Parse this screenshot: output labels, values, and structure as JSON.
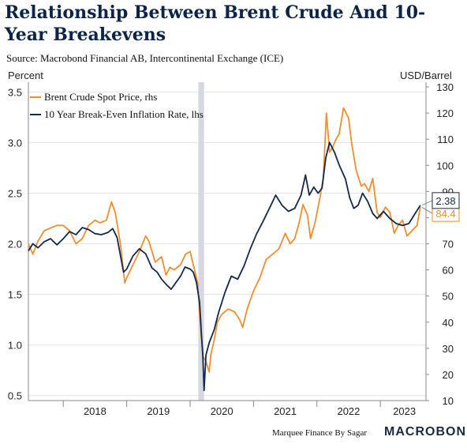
{
  "title": "Relationship Between Brent Crude And 10-Year Breakevens",
  "source": "Source: Macrobond Financial AB, Intercontinental Exchange (ICE)",
  "footer": {
    "credit": "Marquee Finance By Sagar",
    "brand": "MACROBOND"
  },
  "chart_data": {
    "type": "line",
    "ylabel_left": "Percent",
    "ylabel_right": "USD/Barrel",
    "xlim": [
      2017.45,
      2023.72
    ],
    "ylim_left": [
      0.45,
      3.55
    ],
    "ylim_right": [
      10,
      130
    ],
    "yticks_left": [
      "0.5",
      "1.0",
      "1.5",
      "2.0",
      "2.5",
      "3.0",
      "3.5"
    ],
    "yticks_right": [
      "10",
      "20",
      "30",
      "40",
      "50",
      "60",
      "70",
      "80",
      "90",
      "100",
      "110",
      "120",
      "130"
    ],
    "xticks": [
      "2018",
      "2019",
      "2020",
      "2021",
      "2022",
      "2023"
    ],
    "grid": true,
    "legend_position": "top-left",
    "shaded_period": [
      2020.13,
      2020.22
    ],
    "series": [
      {
        "name": "Brent Crude Spot Price, rhs",
        "axis": "right",
        "color": "#f28e2b",
        "last_value_label": "84.4",
        "points": [
          [
            2017.45,
            70
          ],
          [
            2017.52,
            66
          ],
          [
            2017.6,
            71
          ],
          [
            2017.7,
            75
          ],
          [
            2017.8,
            76
          ],
          [
            2017.9,
            77
          ],
          [
            2018.0,
            77
          ],
          [
            2018.1,
            75
          ],
          [
            2018.2,
            70
          ],
          [
            2018.3,
            72
          ],
          [
            2018.4,
            77
          ],
          [
            2018.5,
            79
          ],
          [
            2018.58,
            78
          ],
          [
            2018.68,
            79
          ],
          [
            2018.76,
            86
          ],
          [
            2018.82,
            82
          ],
          [
            2018.9,
            70
          ],
          [
            2018.97,
            55
          ],
          [
            2019.0,
            57
          ],
          [
            2019.1,
            62
          ],
          [
            2019.2,
            67
          ],
          [
            2019.3,
            73
          ],
          [
            2019.35,
            71
          ],
          [
            2019.45,
            63
          ],
          [
            2019.55,
            65
          ],
          [
            2019.62,
            58
          ],
          [
            2019.68,
            61
          ],
          [
            2019.75,
            60
          ],
          [
            2019.85,
            62
          ],
          [
            2019.93,
            66
          ],
          [
            2020.0,
            67
          ],
          [
            2020.05,
            62
          ],
          [
            2020.12,
            55
          ],
          [
            2020.16,
            40
          ],
          [
            2020.2,
            27
          ],
          [
            2020.25,
            25
          ],
          [
            2020.3,
            21
          ],
          [
            2020.33,
            28
          ],
          [
            2020.38,
            33
          ],
          [
            2020.43,
            40
          ],
          [
            2020.5,
            43
          ],
          [
            2020.6,
            45
          ],
          [
            2020.7,
            44
          ],
          [
            2020.78,
            41
          ],
          [
            2020.83,
            38
          ],
          [
            2020.9,
            45
          ],
          [
            2021.0,
            52
          ],
          [
            2021.1,
            57
          ],
          [
            2021.2,
            64
          ],
          [
            2021.3,
            66
          ],
          [
            2021.4,
            68
          ],
          [
            2021.5,
            74
          ],
          [
            2021.58,
            70
          ],
          [
            2021.65,
            72
          ],
          [
            2021.72,
            78
          ],
          [
            2021.78,
            85
          ],
          [
            2021.85,
            81
          ],
          [
            2021.9,
            72
          ],
          [
            2021.97,
            78
          ],
          [
            2022.05,
            88
          ],
          [
            2022.1,
            95
          ],
          [
            2022.15,
            120
          ],
          [
            2022.2,
            105
          ],
          [
            2022.25,
            107
          ],
          [
            2022.3,
            110
          ],
          [
            2022.35,
            112
          ],
          [
            2022.42,
            122
          ],
          [
            2022.5,
            118
          ],
          [
            2022.55,
            108
          ],
          [
            2022.62,
            98
          ],
          [
            2022.7,
            92
          ],
          [
            2022.75,
            93
          ],
          [
            2022.82,
            90
          ],
          [
            2022.88,
            95
          ],
          [
            2022.95,
            82
          ],
          [
            2023.0,
            80
          ],
          [
            2023.08,
            84
          ],
          [
            2023.15,
            82
          ],
          [
            2023.22,
            74
          ],
          [
            2023.28,
            77
          ],
          [
            2023.35,
            79
          ],
          [
            2023.42,
            73
          ],
          [
            2023.5,
            75
          ],
          [
            2023.58,
            77
          ],
          [
            2023.63,
            84
          ]
        ]
      },
      {
        "name": "10 Year Break-Even Inflation Rate, lhs",
        "axis": "left",
        "color": "#14294d",
        "last_value_label": "2.38",
        "points": [
          [
            2017.45,
            1.93
          ],
          [
            2017.52,
            2.0
          ],
          [
            2017.6,
            1.96
          ],
          [
            2017.7,
            2.02
          ],
          [
            2017.8,
            2.05
          ],
          [
            2017.9,
            1.99
          ],
          [
            2018.0,
            2.05
          ],
          [
            2018.1,
            2.12
          ],
          [
            2018.2,
            2.09
          ],
          [
            2018.3,
            2.16
          ],
          [
            2018.4,
            2.14
          ],
          [
            2018.5,
            2.1
          ],
          [
            2018.6,
            2.09
          ],
          [
            2018.7,
            2.11
          ],
          [
            2018.78,
            2.15
          ],
          [
            2018.85,
            2.06
          ],
          [
            2018.95,
            1.72
          ],
          [
            2019.0,
            1.75
          ],
          [
            2019.1,
            1.88
          ],
          [
            2019.2,
            1.95
          ],
          [
            2019.3,
            1.9
          ],
          [
            2019.4,
            1.76
          ],
          [
            2019.48,
            1.72
          ],
          [
            2019.55,
            1.65
          ],
          [
            2019.62,
            1.6
          ],
          [
            2019.7,
            1.55
          ],
          [
            2019.78,
            1.62
          ],
          [
            2019.85,
            1.68
          ],
          [
            2019.92,
            1.77
          ],
          [
            2020.0,
            1.75
          ],
          [
            2020.05,
            1.72
          ],
          [
            2020.1,
            1.62
          ],
          [
            2020.15,
            1.42
          ],
          [
            2020.18,
            1.1
          ],
          [
            2020.2,
            0.9
          ],
          [
            2020.22,
            0.55
          ],
          [
            2020.25,
            0.9
          ],
          [
            2020.3,
            1.02
          ],
          [
            2020.38,
            1.15
          ],
          [
            2020.45,
            1.32
          ],
          [
            2020.55,
            1.52
          ],
          [
            2020.65,
            1.68
          ],
          [
            2020.75,
            1.65
          ],
          [
            2020.85,
            1.78
          ],
          [
            2020.95,
            1.95
          ],
          [
            2021.05,
            2.1
          ],
          [
            2021.15,
            2.22
          ],
          [
            2021.25,
            2.35
          ],
          [
            2021.35,
            2.48
          ],
          [
            2021.45,
            2.38
          ],
          [
            2021.55,
            2.32
          ],
          [
            2021.65,
            2.35
          ],
          [
            2021.75,
            2.48
          ],
          [
            2021.82,
            2.68
          ],
          [
            2021.88,
            2.48
          ],
          [
            2021.95,
            2.56
          ],
          [
            2022.02,
            2.5
          ],
          [
            2022.08,
            2.55
          ],
          [
            2022.14,
            2.85
          ],
          [
            2022.2,
            3.0
          ],
          [
            2022.28,
            2.9
          ],
          [
            2022.35,
            2.78
          ],
          [
            2022.45,
            2.64
          ],
          [
            2022.52,
            2.45
          ],
          [
            2022.58,
            2.35
          ],
          [
            2022.65,
            2.38
          ],
          [
            2022.72,
            2.5
          ],
          [
            2022.8,
            2.42
          ],
          [
            2022.88,
            2.3
          ],
          [
            2022.95,
            2.25
          ],
          [
            2023.05,
            2.32
          ],
          [
            2023.15,
            2.25
          ],
          [
            2023.25,
            2.2
          ],
          [
            2023.35,
            2.18
          ],
          [
            2023.45,
            2.2
          ],
          [
            2023.55,
            2.3
          ],
          [
            2023.63,
            2.38
          ]
        ]
      }
    ]
  }
}
